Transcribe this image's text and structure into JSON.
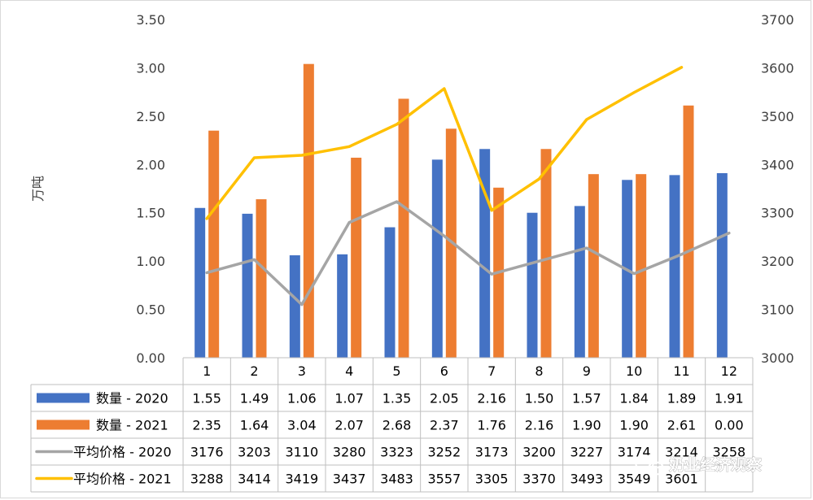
{
  "chart_data": {
    "type": "bar",
    "categories": [
      "1",
      "2",
      "3",
      "4",
      "5",
      "6",
      "7",
      "8",
      "9",
      "10",
      "11",
      "12"
    ],
    "ylabel": "万吨",
    "ylim": [
      0,
      3.5
    ],
    "y_ticks": [
      "0.00",
      "0.50",
      "1.00",
      "1.50",
      "2.00",
      "2.50",
      "3.00",
      "3.50"
    ],
    "y2lim": [
      3000,
      3700
    ],
    "y2_ticks": [
      "3000",
      "3100",
      "3200",
      "3300",
      "3400",
      "3500",
      "3600",
      "3700"
    ],
    "grid": false,
    "legend": "data-table",
    "series": [
      {
        "name": "数量 - 2020",
        "type": "bar",
        "axis": "left",
        "color": "#4472C4",
        "values": [
          1.55,
          1.49,
          1.06,
          1.07,
          1.35,
          2.05,
          2.16,
          1.5,
          1.57,
          1.84,
          1.89,
          1.91
        ],
        "labels": [
          "1.55",
          "1.49",
          "1.06",
          "1.07",
          "1.35",
          "2.05",
          "2.16",
          "1.50",
          "1.57",
          "1.84",
          "1.89",
          "1.91"
        ]
      },
      {
        "name": "数量 - 2021",
        "type": "bar",
        "axis": "left",
        "color": "#ED7D31",
        "values": [
          2.35,
          1.64,
          3.04,
          2.07,
          2.68,
          2.37,
          1.76,
          2.16,
          1.9,
          1.9,
          2.61,
          0.0
        ],
        "labels": [
          "2.35",
          "1.64",
          "3.04",
          "2.07",
          "2.68",
          "2.37",
          "1.76",
          "2.16",
          "1.90",
          "1.90",
          "2.61",
          "0.00"
        ]
      },
      {
        "name": "平均价格 - 2020",
        "type": "line",
        "axis": "right",
        "color": "#A5A5A5",
        "values": [
          3176,
          3203,
          3110,
          3280,
          3323,
          3252,
          3173,
          3200,
          3227,
          3174,
          3214,
          3258
        ],
        "labels": [
          "3176",
          "3203",
          "3110",
          "3280",
          "3323",
          "3252",
          "3173",
          "3200",
          "3227",
          "3174",
          "3214",
          "3258"
        ]
      },
      {
        "name": "平均价格 - 2021",
        "type": "line",
        "axis": "right",
        "color": "#FFC000",
        "values": [
          3288,
          3414,
          3419,
          3437,
          3483,
          3557,
          3305,
          3370,
          3493,
          3549,
          3601,
          null
        ],
        "labels": [
          "3288",
          "3414",
          "3419",
          "3437",
          "3483",
          "3557",
          "3305",
          "3370",
          "3493",
          "3549",
          "3601",
          ""
        ]
      }
    ]
  },
  "watermark": {
    "text": "奶业经济观察",
    "icon": "wechat-icon"
  }
}
